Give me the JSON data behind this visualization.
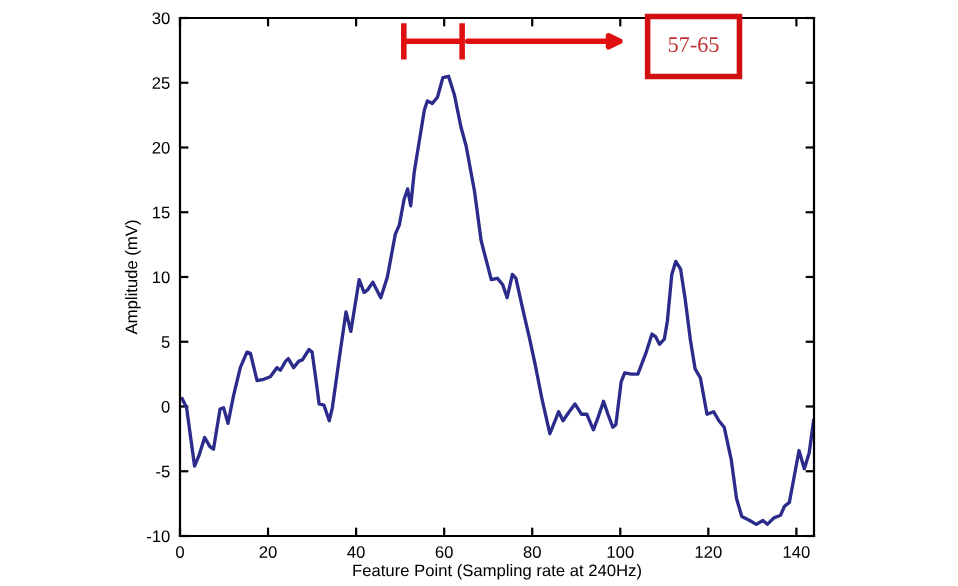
{
  "chart_data": {
    "type": "line",
    "xlabel": "Feature Point (Sampling rate at 240Hz)",
    "ylabel": "Amplitude (mV)",
    "xlim": [
      0,
      144
    ],
    "ylim": [
      -10,
      30
    ],
    "xticks": [
      0,
      20,
      40,
      60,
      80,
      100,
      120,
      140
    ],
    "yticks": [
      -10,
      -5,
      0,
      5,
      10,
      15,
      20,
      25,
      30
    ],
    "grid": false,
    "annotations": [
      "57-65"
    ],
    "series": [
      {
        "color": "#2b2b8c",
        "x": [
          0.5,
          1.5,
          3.3,
          4.3,
          5.6,
          6.8,
          7.6,
          9.1,
          9.9,
          10.9,
          12.2,
          13.7,
          15.2,
          16,
          17.5,
          19,
          20.5,
          22,
          22.8,
          24,
          24.6,
          25.8,
          27,
          27.8,
          29.3,
          30,
          30.9,
          31.6,
          32.7,
          33.9,
          34.6,
          36.5,
          37.7,
          38.8,
          40.7,
          41.8,
          42.6,
          43.8,
          45.6,
          47.1,
          48.9,
          49.8,
          50.9,
          51.7,
          52.4,
          53.2,
          55.5,
          56.2,
          57.3,
          58.5,
          59.7,
          61,
          62.3,
          63.8,
          65,
          66.9,
          68.4,
          70.7,
          72.1,
          73.3,
          74.3,
          75.5,
          76.3,
          77.8,
          79.3,
          80.7,
          82.2,
          84,
          85.2,
          86,
          87,
          88.2,
          89.7,
          91.2,
          92.4,
          93.9,
          95,
          96.2,
          97.2,
          98.3,
          99,
          100.2,
          101,
          102.5,
          104,
          105.9,
          107.2,
          108,
          108.9,
          110,
          110.7,
          111.7,
          112.6,
          113.7,
          114.7,
          115.9,
          117,
          118.2,
          119.7,
          121.2,
          122.4,
          123.6,
          125.2,
          126.4,
          127.6,
          129.4,
          130.9,
          132.4,
          133.4,
          134.9,
          136.4,
          137.3,
          138.4,
          139.4,
          140.6,
          141.8,
          142.9,
          143.9
        ],
        "values": [
          0.6,
          -0.1,
          -4.6,
          -3.8,
          -2.4,
          -3.1,
          -3.3,
          -0.2,
          -0.1,
          -1.3,
          0.9,
          3.0,
          4.2,
          4.1,
          2.0,
          2.1,
          2.3,
          3.0,
          2.8,
          3.5,
          3.7,
          3.0,
          3.5,
          3.6,
          4.4,
          4.2,
          2.0,
          0.2,
          0.1,
          -1.1,
          -0.1,
          4.5,
          7.3,
          5.8,
          9.8,
          8.8,
          9.0,
          9.6,
          8.4,
          10.0,
          13.3,
          14.0,
          16.0,
          16.8,
          15.5,
          18.1,
          22.9,
          23.6,
          23.4,
          23.9,
          25.4,
          25.5,
          24.1,
          21.6,
          20.1,
          16.6,
          12.8,
          9.8,
          9.9,
          9.4,
          8.4,
          10.2,
          9.9,
          7.6,
          5.4,
          3.2,
          0.6,
          -2.1,
          -1.1,
          -0.4,
          -1.1,
          -0.5,
          0.2,
          -0.6,
          -0.6,
          -1.8,
          -0.8,
          0.4,
          -0.6,
          -1.6,
          -1.4,
          1.9,
          2.6,
          2.5,
          2.5,
          4.2,
          5.6,
          5.4,
          4.8,
          5.2,
          6.6,
          10.2,
          11.2,
          10.6,
          8.4,
          5.2,
          2.9,
          2.2,
          -0.6,
          -0.4,
          -1.1,
          -1.6,
          -4.1,
          -7.1,
          -8.5,
          -8.8,
          -9.1,
          -8.8,
          -9.1,
          -8.6,
          -8.4,
          -7.7,
          -7.4,
          -5.6,
          -3.4,
          -4.8,
          -3.6,
          -1.1
        ]
      }
    ]
  }
}
